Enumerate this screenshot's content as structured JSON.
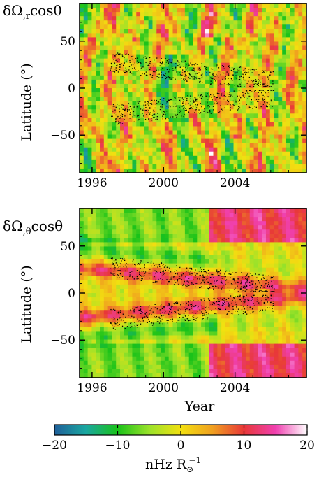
{
  "chart_data": [
    {
      "type": "heatmap",
      "title": "δΩ,rcosθ",
      "title_parts": {
        "main": "δΩ",
        "sub": ",r",
        "tail": "cosθ"
      },
      "xlabel": "",
      "ylabel": "Latitude (°)",
      "xlim": [
        1995.3,
        2008.0
      ],
      "ylim": [
        -90,
        90
      ],
      "xticks": [
        1996,
        2000,
        2004
      ],
      "yticks": [
        50,
        0,
        -50
      ],
      "xtick_labels": [
        "1996",
        "2000",
        "2004"
      ],
      "ytick_labels": [
        "50",
        "0",
        "−50"
      ],
      "colorscale": "diverging blue-green-yellow-red-magenta-white",
      "overlay": "active-region scatter points (black) near ±10–30° latitude, 1997–2006",
      "grid": false
    },
    {
      "type": "heatmap",
      "title": "δΩ,θcosθ",
      "title_parts": {
        "main": "δΩ",
        "sub": ",θ",
        "tail": "cosθ"
      },
      "xlabel": "Year",
      "ylabel": "Latitude (°)",
      "xlim": [
        1995.3,
        2008.0
      ],
      "ylim": [
        -90,
        90
      ],
      "xticks": [
        1996,
        2000,
        2004
      ],
      "yticks": [
        50,
        0,
        -50
      ],
      "xtick_labels": [
        "1996",
        "2000",
        "2004"
      ],
      "ytick_labels": [
        "50",
        "0",
        "−50"
      ],
      "colorscale": "diverging blue-green-yellow-red-magenta-white",
      "overlay": "active-region scatter points (black) near ±10–30° latitude, 1997–2006",
      "grid": false
    }
  ],
  "colorbar": {
    "min": -20,
    "max": 20,
    "ticks": [
      -20,
      -10,
      0,
      10,
      20
    ],
    "tick_labels": [
      "−20",
      "−10",
      "0",
      "10",
      "20"
    ],
    "label_main": "nHz R",
    "label_sub": "⊙",
    "label_sup": "−1",
    "colors": [
      "#1f5f9a",
      "#1aa7a0",
      "#19c219",
      "#9ae22a",
      "#f2e010",
      "#f0a020",
      "#e83838",
      "#f040b0",
      "#ffffff"
    ]
  }
}
